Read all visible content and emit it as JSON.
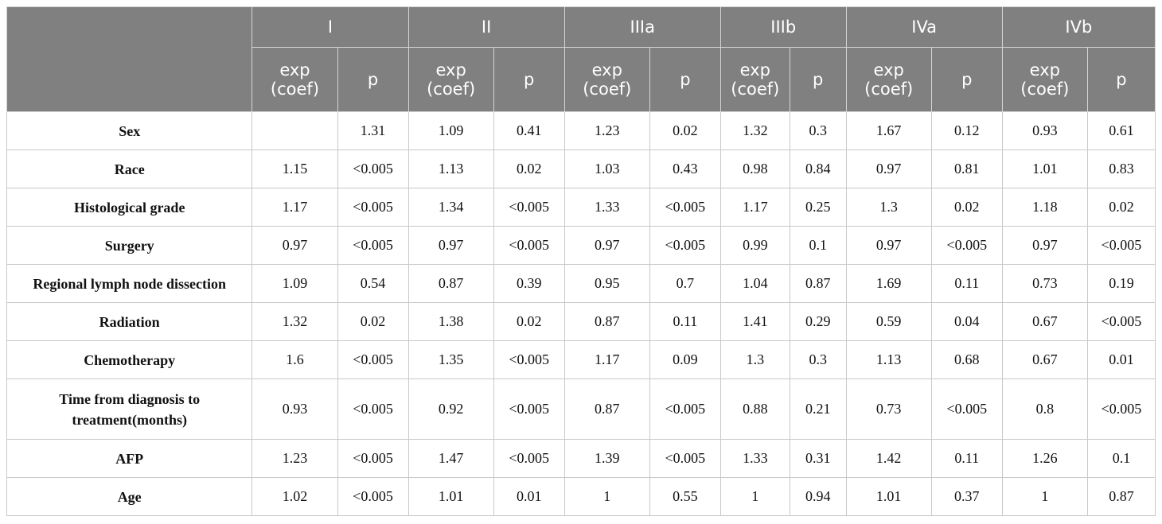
{
  "header": {
    "stages": [
      "I",
      "II",
      "IIIa",
      "IIIb",
      "IVa",
      "IVb"
    ],
    "exp_label_line1": "exp",
    "exp_label_line2": "(coef)",
    "p_label": "p"
  },
  "rows": [
    {
      "label": "Sex",
      "values": [
        "",
        "1.31",
        "1.09",
        "0.41",
        "1.23",
        "0.02",
        "1.32",
        "0.3",
        "1.67",
        "0.12",
        "0.93",
        "0.61"
      ]
    },
    {
      "label": "Race",
      "values": [
        "1.15",
        "<0.005",
        "1.13",
        "0.02",
        "1.03",
        "0.43",
        "0.98",
        "0.84",
        "0.97",
        "0.81",
        "1.01",
        "0.83"
      ]
    },
    {
      "label": "Histological grade",
      "values": [
        "1.17",
        "<0.005",
        "1.34",
        "<0.005",
        "1.33",
        "<0.005",
        "1.17",
        "0.25",
        "1.3",
        "0.02",
        "1.18",
        "0.02"
      ]
    },
    {
      "label": "Surgery",
      "values": [
        "0.97",
        "<0.005",
        "0.97",
        "<0.005",
        "0.97",
        "<0.005",
        "0.99",
        "0.1",
        "0.97",
        "<0.005",
        "0.97",
        "<0.005"
      ]
    },
    {
      "label": "Regional lymph node dissection",
      "values": [
        "1.09",
        "0.54",
        "0.87",
        "0.39",
        "0.95",
        "0.7",
        "1.04",
        "0.87",
        "1.69",
        "0.11",
        "0.73",
        "0.19"
      ]
    },
    {
      "label": "Radiation",
      "values": [
        "1.32",
        "0.02",
        "1.38",
        "0.02",
        "0.87",
        "0.11",
        "1.41",
        "0.29",
        "0.59",
        "0.04",
        "0.67",
        "<0.005"
      ]
    },
    {
      "label": "Chemotherapy",
      "values": [
        "1.6",
        "<0.005",
        "1.35",
        "<0.005",
        "1.17",
        "0.09",
        "1.3",
        "0.3",
        "1.13",
        "0.68",
        "0.67",
        "0.01"
      ]
    },
    {
      "label_line1": "Time from diagnosis to",
      "label_line2": "treatment(months)",
      "values": [
        "0.93",
        "<0.005",
        "0.92",
        "<0.005",
        "0.87",
        "<0.005",
        "0.88",
        "0.21",
        "0.73",
        "<0.005",
        "0.8",
        "<0.005"
      ]
    },
    {
      "label": "AFP",
      "values": [
        "1.23",
        "<0.005",
        "1.47",
        "<0.005",
        "1.39",
        "<0.005",
        "1.33",
        "0.31",
        "1.42",
        "0.11",
        "1.26",
        "0.1"
      ]
    },
    {
      "label": "Age",
      "values": [
        "1.02",
        "<0.005",
        "1.01",
        "0.01",
        "1",
        "0.55",
        "1",
        "0.94",
        "1.01",
        "0.37",
        "1",
        "0.87"
      ]
    }
  ]
}
